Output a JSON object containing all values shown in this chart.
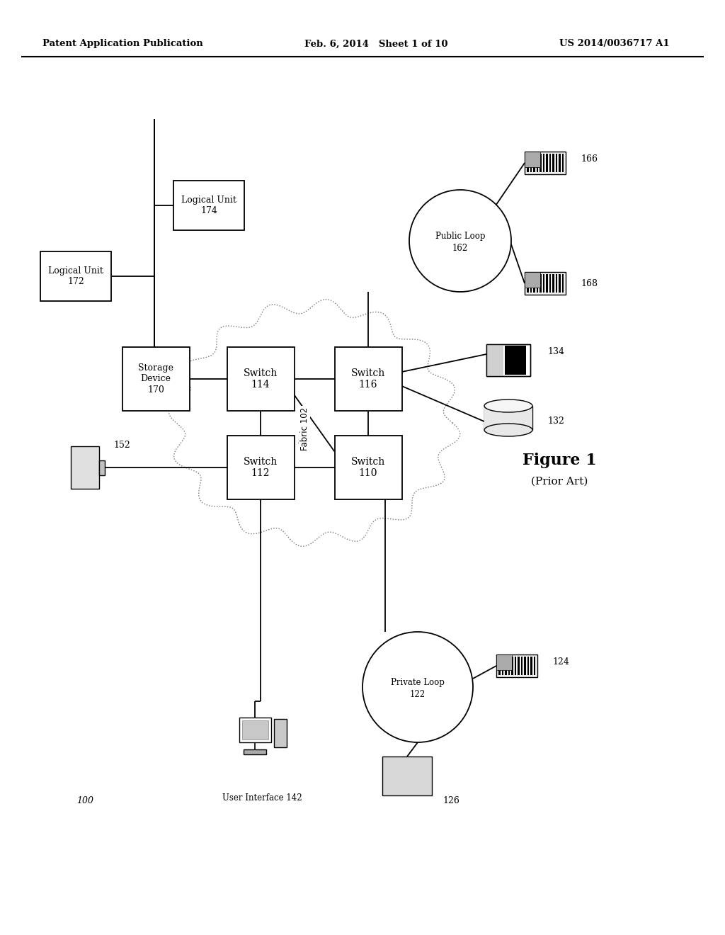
{
  "header_left": "Patent Application Publication",
  "header_center": "Feb. 6, 2014   Sheet 1 of 10",
  "header_right": "US 2014/0036717 A1",
  "figure_label": "Figure 1",
  "figure_sublabel": "(Prior Art)",
  "diagram_label": "100",
  "fabric_label": "Fabric 102",
  "bg_color": "#ffffff"
}
